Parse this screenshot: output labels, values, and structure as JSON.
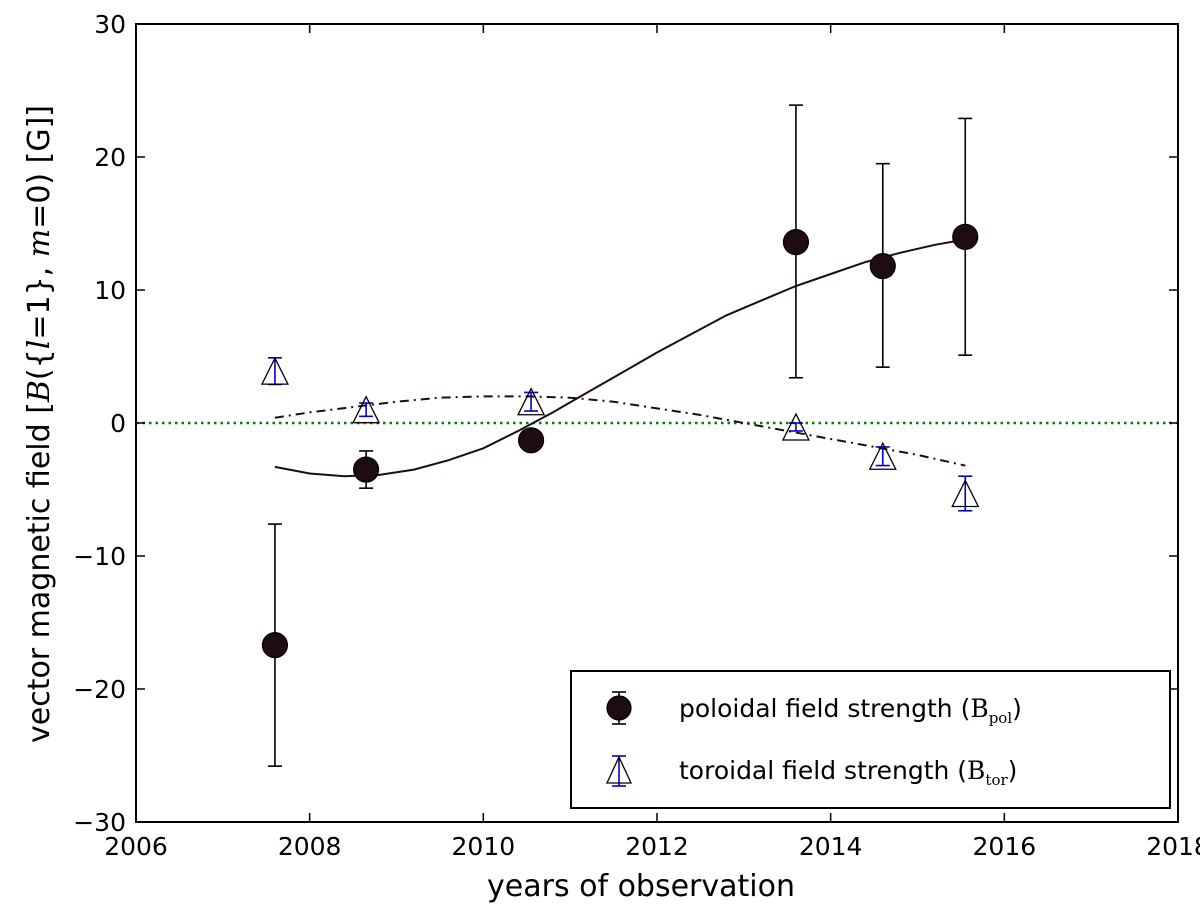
{
  "chart_data": {
    "type": "scatter",
    "title": "",
    "xlabel": "years of observation",
    "ylabel": {
      "prefix": "vector magnetic field [",
      "B": "B",
      "open": "({",
      "l": "l",
      "mid": "=1}, ",
      "m": "m",
      "close": "=0) [G]]"
    },
    "xlim": [
      2006,
      2018
    ],
    "ylim": [
      -30,
      30
    ],
    "xticks": [
      2006,
      2008,
      2010,
      2012,
      2014,
      2016,
      2018
    ],
    "yticks": [
      -30,
      -20,
      -10,
      0,
      10,
      20,
      30
    ],
    "zero_line": {
      "y": 0,
      "color": "#008000",
      "style": "dotted"
    },
    "series": [
      {
        "name": "poloidal field strength",
        "symbol": "B",
        "subscript": "pol",
        "marker": "circle",
        "color": "#1e0b14",
        "points": [
          {
            "x": 2007.6,
            "y": -16.7,
            "err_low": 9.1,
            "err_high": 9.1
          },
          {
            "x": 2008.65,
            "y": -3.5,
            "err_low": 1.4,
            "err_high": 1.4
          },
          {
            "x": 2010.55,
            "y": -1.3,
            "err_low": 0.4,
            "err_high": 0.4
          },
          {
            "x": 2013.6,
            "y": 13.6,
            "err_low": 10.2,
            "err_high": 10.3
          },
          {
            "x": 2014.6,
            "y": 11.8,
            "err_low": 7.6,
            "err_high": 7.7
          },
          {
            "x": 2015.55,
            "y": 14.0,
            "err_low": 8.9,
            "err_high": 8.9
          }
        ],
        "fit": {
          "style": "solid",
          "x": [
            2007.6,
            2008.0,
            2008.4,
            2008.8,
            2009.2,
            2009.6,
            2010.0,
            2010.4,
            2010.8,
            2011.2,
            2011.6,
            2012.0,
            2012.4,
            2012.8,
            2013.2,
            2013.6,
            2014.0,
            2014.4,
            2014.8,
            2015.2,
            2015.55
          ],
          "y": [
            -3.3,
            -3.8,
            -4.0,
            -3.9,
            -3.5,
            -2.8,
            -1.9,
            -0.6,
            0.8,
            2.3,
            3.8,
            5.3,
            6.7,
            8.1,
            9.2,
            10.3,
            11.2,
            12.1,
            12.8,
            13.4,
            13.8
          ]
        }
      },
      {
        "name": "toroidal field strength",
        "symbol": "B",
        "subscript": "tor",
        "marker": "triangle",
        "color": "#ffffff",
        "edge_color": "#000000",
        "err_color": "#0000cc",
        "points": [
          {
            "x": 2007.6,
            "y": 3.9,
            "err_low": 1.0,
            "err_high": 1.0
          },
          {
            "x": 2008.65,
            "y": 1.0,
            "err_low": 0.5,
            "err_high": 0.5
          },
          {
            "x": 2010.55,
            "y": 1.6,
            "err_low": 0.7,
            "err_high": 0.7
          },
          {
            "x": 2013.6,
            "y": -0.3,
            "err_low": 0.3,
            "err_high": 0.3
          },
          {
            "x": 2014.6,
            "y": -2.5,
            "err_low": 0.7,
            "err_high": 0.7
          },
          {
            "x": 2015.55,
            "y": -5.3,
            "err_low": 1.3,
            "err_high": 1.3
          }
        ],
        "fit": {
          "style": "dashdot",
          "x": [
            2007.6,
            2008.0,
            2008.5,
            2009.0,
            2009.5,
            2010.0,
            2010.5,
            2011.0,
            2011.5,
            2012.0,
            2012.5,
            2013.0,
            2013.5,
            2014.0,
            2014.5,
            2015.0,
            2015.55
          ],
          "y": [
            0.4,
            0.8,
            1.2,
            1.6,
            1.9,
            2.0,
            2.0,
            1.9,
            1.6,
            1.1,
            0.6,
            0.0,
            -0.6,
            -1.2,
            -1.8,
            -2.4,
            -3.2
          ]
        }
      }
    ],
    "legend": {
      "placement": "lower-right"
    }
  }
}
